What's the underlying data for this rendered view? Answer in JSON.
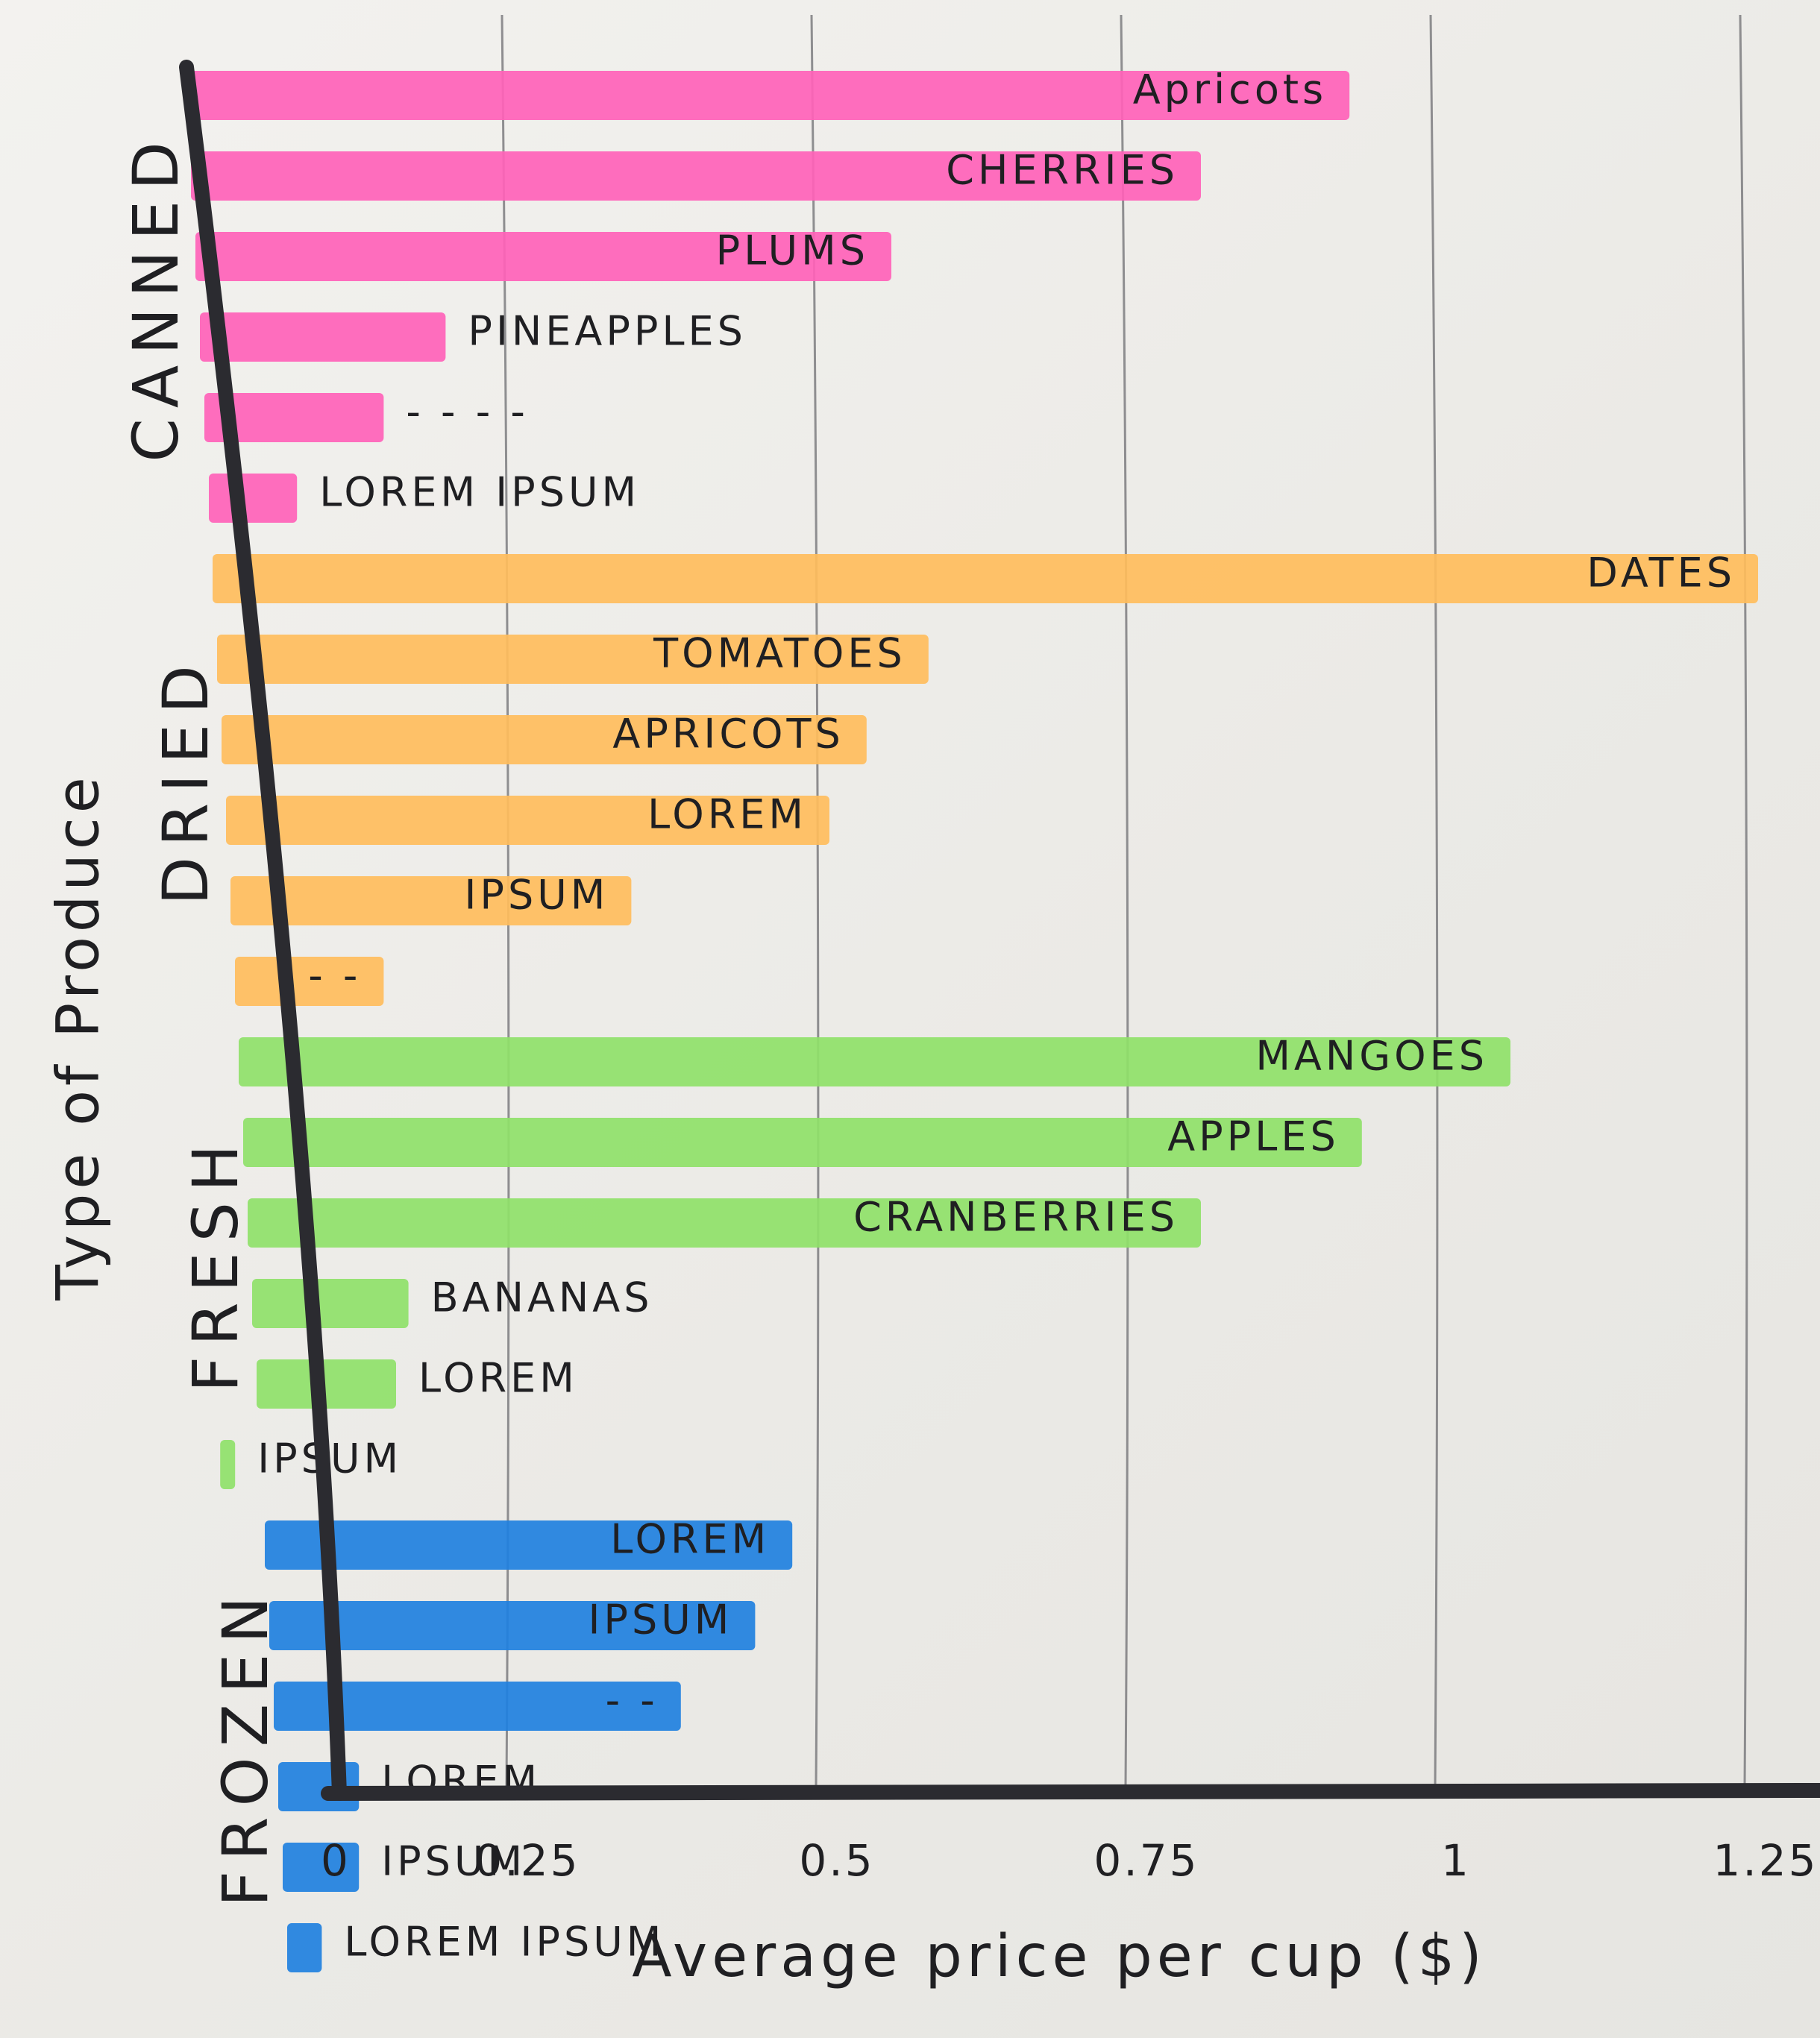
{
  "chart_data": {
    "type": "bar",
    "orientation": "horizontal",
    "title": "",
    "xlabel": "Average price per cup ($)",
    "ylabel": "Type of Produce",
    "xlim": [
      0,
      1.35
    ],
    "x_ticks": [
      {
        "value": 0,
        "label": "0"
      },
      {
        "value": 0.25,
        "label": "0.25"
      },
      {
        "value": 0.5,
        "label": "0.5"
      },
      {
        "value": 0.75,
        "label": "0.75"
      },
      {
        "value": 1,
        "label": "1"
      },
      {
        "value": 1.25,
        "label": "1.25"
      }
    ],
    "grid": true,
    "groups": [
      {
        "name": "CANNED",
        "color": "#ff62b8",
        "bars": [
          {
            "label": "Apricots",
            "value": 0.92
          },
          {
            "label": "CHERRIES",
            "value": 0.8
          },
          {
            "label": "PLUMS",
            "value": 0.55
          },
          {
            "label": "PINEAPPLES",
            "value": 0.19
          },
          {
            "label": "- - - -",
            "value": 0.14
          },
          {
            "label": "LOREM IPSUM",
            "value": 0.07
          }
        ]
      },
      {
        "name": "DRIED",
        "color": "#ffbd5c",
        "bars": [
          {
            "label": "DATES",
            "value": 1.25
          },
          {
            "label": "TOMATOES",
            "value": 0.58
          },
          {
            "label": "APRICOTS",
            "value": 0.53
          },
          {
            "label": "LOREM",
            "value": 0.5
          },
          {
            "label": "IPSUM",
            "value": 0.34
          },
          {
            "label": "- -",
            "value": 0.14
          }
        ]
      },
      {
        "name": "FRESH",
        "color": "#8fe169",
        "bars": [
          {
            "label": "MANGOES",
            "value": 1.05
          },
          {
            "label": "APPLES",
            "value": 0.93
          },
          {
            "label": "CRANBERRIES",
            "value": 0.8
          },
          {
            "label": "BANANAS",
            "value": 0.16
          },
          {
            "label": "LOREM",
            "value": 0.15
          },
          {
            "label": "IPSUM",
            "value": 0.02
          }
        ]
      },
      {
        "name": "FROZEN",
        "color": "#1f80e0",
        "bars": [
          {
            "label": "LOREM",
            "value": 0.47
          },
          {
            "label": "IPSUM",
            "value": 0.44
          },
          {
            "label": "- -",
            "value": 0.38
          },
          {
            "label": "LOREM",
            "value": 0.12
          },
          {
            "label": "IPSUM",
            "value": 0.12
          },
          {
            "label": "LOREM IPSUM",
            "value": 0.09
          }
        ]
      }
    ]
  }
}
